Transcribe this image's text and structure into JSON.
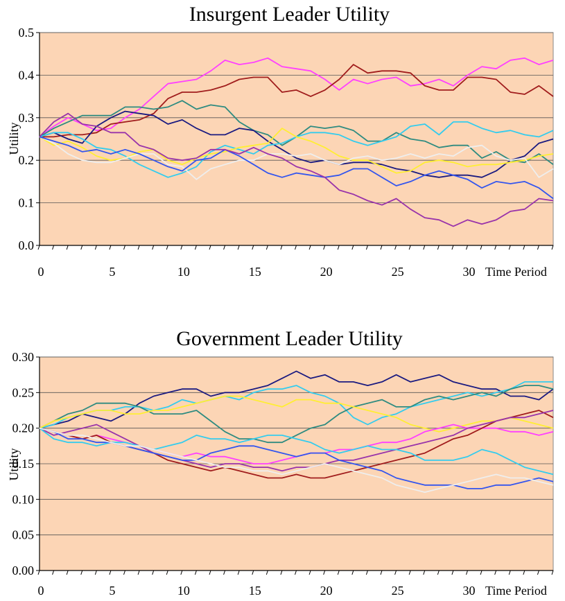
{
  "chart_data": [
    {
      "type": "line",
      "title": "Insurgent Leader Utility",
      "ylabel": "Utility",
      "xlabel": "Time Period",
      "xlim": [
        0,
        36
      ],
      "ylim": [
        0,
        0.5
      ],
      "x_ticks": [
        0,
        5,
        10,
        15,
        20,
        25,
        30
      ],
      "y_ticks": [
        0.0,
        0.1,
        0.2,
        0.3,
        0.4,
        0.5
      ],
      "y_tick_labels": [
        "0.0",
        "0.1",
        "0.2",
        "0.3",
        "0.4",
        "0.5"
      ],
      "grid": "horizontal",
      "plot_background": "#fcd5b5",
      "series": [
        {
          "color": "#ff40ff",
          "values": [
            0.255,
            0.28,
            0.3,
            0.285,
            0.27,
            0.275,
            0.3,
            0.32,
            0.35,
            0.38,
            0.385,
            0.39,
            0.41,
            0.435,
            0.425,
            0.43,
            0.44,
            0.42,
            0.415,
            0.41,
            0.39,
            0.365,
            0.39,
            0.38,
            0.39,
            0.395,
            0.375,
            0.38,
            0.39,
            0.375,
            0.4,
            0.42,
            0.415,
            0.435,
            0.44,
            0.425,
            0.435
          ]
        },
        {
          "color": "#a01c1c",
          "values": [
            0.255,
            0.255,
            0.26,
            0.26,
            0.265,
            0.285,
            0.29,
            0.295,
            0.31,
            0.345,
            0.36,
            0.36,
            0.365,
            0.375,
            0.39,
            0.395,
            0.395,
            0.36,
            0.365,
            0.35,
            0.365,
            0.39,
            0.425,
            0.405,
            0.41,
            0.41,
            0.405,
            0.375,
            0.365,
            0.365,
            0.395,
            0.395,
            0.39,
            0.36,
            0.355,
            0.375,
            0.35
          ]
        },
        {
          "color": "#2e8b80",
          "values": [
            0.255,
            0.275,
            0.29,
            0.305,
            0.305,
            0.305,
            0.325,
            0.325,
            0.32,
            0.325,
            0.34,
            0.32,
            0.33,
            0.325,
            0.29,
            0.27,
            0.26,
            0.235,
            0.255,
            0.28,
            0.275,
            0.28,
            0.27,
            0.245,
            0.245,
            0.265,
            0.25,
            0.245,
            0.23,
            0.235,
            0.235,
            0.205,
            0.22,
            0.2,
            0.195,
            0.215,
            0.19
          ]
        },
        {
          "color": "#1a1a80",
          "values": [
            0.255,
            0.265,
            0.25,
            0.24,
            0.28,
            0.3,
            0.315,
            0.31,
            0.305,
            0.285,
            0.295,
            0.275,
            0.26,
            0.26,
            0.275,
            0.27,
            0.245,
            0.225,
            0.205,
            0.195,
            0.2,
            0.19,
            0.195,
            0.195,
            0.19,
            0.18,
            0.175,
            0.165,
            0.16,
            0.165,
            0.165,
            0.16,
            0.175,
            0.2,
            0.21,
            0.24,
            0.25
          ]
        },
        {
          "color": "#33ccee",
          "values": [
            0.255,
            0.265,
            0.265,
            0.25,
            0.23,
            0.225,
            0.21,
            0.19,
            0.175,
            0.16,
            0.17,
            0.185,
            0.22,
            0.235,
            0.225,
            0.215,
            0.235,
            0.24,
            0.255,
            0.265,
            0.265,
            0.26,
            0.245,
            0.235,
            0.245,
            0.255,
            0.28,
            0.285,
            0.26,
            0.29,
            0.29,
            0.275,
            0.265,
            0.27,
            0.26,
            0.255,
            0.27
          ]
        },
        {
          "color": "#ffee33",
          "values": [
            0.255,
            0.235,
            0.245,
            0.23,
            0.21,
            0.2,
            0.205,
            0.22,
            0.225,
            0.2,
            0.19,
            0.205,
            0.215,
            0.22,
            0.23,
            0.235,
            0.24,
            0.275,
            0.255,
            0.245,
            0.23,
            0.21,
            0.2,
            0.2,
            0.185,
            0.17,
            0.175,
            0.195,
            0.2,
            0.195,
            0.185,
            0.19,
            0.19,
            0.195,
            0.2,
            0.21,
            0.215
          ]
        },
        {
          "color": "#eeeeee",
          "values": [
            0.255,
            0.24,
            0.215,
            0.2,
            0.195,
            0.195,
            0.205,
            0.215,
            0.215,
            0.19,
            0.185,
            0.155,
            0.18,
            0.19,
            0.2,
            0.2,
            0.215,
            0.215,
            0.21,
            0.215,
            0.2,
            0.19,
            0.205,
            0.21,
            0.2,
            0.205,
            0.215,
            0.205,
            0.215,
            0.21,
            0.23,
            0.235,
            0.21,
            0.2,
            0.205,
            0.16,
            0.18
          ]
        },
        {
          "color": "#3355ee",
          "values": [
            0.255,
            0.245,
            0.235,
            0.22,
            0.225,
            0.215,
            0.225,
            0.215,
            0.2,
            0.185,
            0.175,
            0.2,
            0.205,
            0.225,
            0.21,
            0.19,
            0.17,
            0.16,
            0.17,
            0.165,
            0.16,
            0.165,
            0.18,
            0.18,
            0.16,
            0.14,
            0.15,
            0.165,
            0.175,
            0.165,
            0.155,
            0.135,
            0.15,
            0.145,
            0.15,
            0.135,
            0.11
          ]
        },
        {
          "color": "#9933aa",
          "values": [
            0.255,
            0.29,
            0.31,
            0.285,
            0.28,
            0.265,
            0.265,
            0.235,
            0.225,
            0.205,
            0.2,
            0.205,
            0.225,
            0.225,
            0.215,
            0.23,
            0.215,
            0.205,
            0.185,
            0.175,
            0.16,
            0.13,
            0.12,
            0.105,
            0.095,
            0.11,
            0.085,
            0.065,
            0.06,
            0.045,
            0.06,
            0.05,
            0.06,
            0.08,
            0.085,
            0.11,
            0.105
          ]
        }
      ]
    },
    {
      "type": "line",
      "title": "Government Leader Utility",
      "ylabel": "Utility",
      "xlabel": "Time Period",
      "xlim": [
        0,
        36
      ],
      "ylim": [
        0,
        0.3
      ],
      "x_ticks": [
        0,
        5,
        10,
        15,
        20,
        25,
        30
      ],
      "y_ticks": [
        0.0,
        0.05,
        0.1,
        0.15,
        0.2,
        0.25,
        0.3
      ],
      "y_tick_labels": [
        "0.00",
        "0.05",
        "0.10",
        "0.15",
        "0.20",
        "0.25",
        "0.30"
      ],
      "grid": "horizontal",
      "plot_background": "#fcd5b5",
      "series": [
        {
          "color": "#1a1a80",
          "values": [
            0.2,
            0.205,
            0.21,
            0.22,
            0.215,
            0.21,
            0.22,
            0.235,
            0.245,
            0.25,
            0.255,
            0.255,
            0.245,
            0.25,
            0.25,
            0.255,
            0.26,
            0.27,
            0.28,
            0.27,
            0.275,
            0.265,
            0.265,
            0.26,
            0.265,
            0.275,
            0.265,
            0.27,
            0.275,
            0.265,
            0.26,
            0.255,
            0.255,
            0.245,
            0.245,
            0.24,
            0.255
          ]
        },
        {
          "color": "#33ccee",
          "values": [
            0.2,
            0.205,
            0.215,
            0.22,
            0.225,
            0.225,
            0.23,
            0.23,
            0.225,
            0.23,
            0.24,
            0.235,
            0.24,
            0.245,
            0.24,
            0.25,
            0.255,
            0.255,
            0.26,
            0.25,
            0.245,
            0.235,
            0.215,
            0.205,
            0.215,
            0.22,
            0.23,
            0.235,
            0.24,
            0.245,
            0.25,
            0.245,
            0.25,
            0.255,
            0.265,
            0.265,
            0.265
          ]
        },
        {
          "color": "#2e8b80",
          "values": [
            0.2,
            0.21,
            0.22,
            0.225,
            0.235,
            0.235,
            0.235,
            0.23,
            0.22,
            0.22,
            0.22,
            0.225,
            0.21,
            0.195,
            0.185,
            0.185,
            0.18,
            0.18,
            0.19,
            0.2,
            0.205,
            0.22,
            0.23,
            0.235,
            0.24,
            0.23,
            0.23,
            0.24,
            0.245,
            0.24,
            0.245,
            0.25,
            0.245,
            0.255,
            0.26,
            0.26,
            0.255
          ]
        },
        {
          "color": "#ffee33",
          "values": [
            0.2,
            0.21,
            0.215,
            0.22,
            0.225,
            0.225,
            0.22,
            0.22,
            0.225,
            0.225,
            0.23,
            0.235,
            0.24,
            0.245,
            0.245,
            0.24,
            0.235,
            0.23,
            0.24,
            0.24,
            0.235,
            0.235,
            0.23,
            0.225,
            0.22,
            0.215,
            0.205,
            0.2,
            0.195,
            0.2,
            0.205,
            0.21,
            0.21,
            0.215,
            0.21,
            0.205,
            0.2
          ]
        },
        {
          "color": "#ff40ff",
          "values": [
            0.2,
            0.195,
            0.19,
            0.185,
            0.19,
            0.185,
            0.18,
            0.175,
            0.17,
            0.165,
            0.16,
            0.165,
            0.16,
            0.16,
            0.155,
            0.15,
            0.15,
            0.155,
            0.16,
            0.165,
            0.165,
            0.17,
            0.17,
            0.175,
            0.18,
            0.18,
            0.185,
            0.195,
            0.2,
            0.205,
            0.2,
            0.2,
            0.2,
            0.195,
            0.195,
            0.19,
            0.195
          ]
        },
        {
          "color": "#a01c1c",
          "values": [
            0.2,
            0.195,
            0.19,
            0.185,
            0.19,
            0.18,
            0.175,
            0.17,
            0.165,
            0.155,
            0.15,
            0.145,
            0.14,
            0.145,
            0.14,
            0.135,
            0.13,
            0.13,
            0.135,
            0.13,
            0.13,
            0.135,
            0.14,
            0.145,
            0.15,
            0.155,
            0.16,
            0.165,
            0.175,
            0.185,
            0.19,
            0.2,
            0.21,
            0.215,
            0.22,
            0.225,
            0.215
          ]
        },
        {
          "color": "#9933aa",
          "values": [
            0.2,
            0.19,
            0.195,
            0.2,
            0.205,
            0.195,
            0.185,
            0.175,
            0.165,
            0.16,
            0.155,
            0.15,
            0.145,
            0.15,
            0.15,
            0.145,
            0.145,
            0.14,
            0.145,
            0.145,
            0.15,
            0.155,
            0.155,
            0.16,
            0.165,
            0.17,
            0.175,
            0.18,
            0.185,
            0.19,
            0.2,
            0.205,
            0.21,
            0.215,
            0.215,
            0.22,
            0.225
          ]
        },
        {
          "color": "#33ccee",
          "values": [
            0.2,
            0.185,
            0.18,
            0.18,
            0.175,
            0.18,
            0.18,
            0.175,
            0.17,
            0.175,
            0.18,
            0.19,
            0.185,
            0.185,
            0.18,
            0.185,
            0.19,
            0.19,
            0.185,
            0.18,
            0.17,
            0.165,
            0.17,
            0.175,
            0.17,
            0.17,
            0.165,
            0.155,
            0.155,
            0.155,
            0.16,
            0.17,
            0.165,
            0.155,
            0.145,
            0.14,
            0.135
          ]
        },
        {
          "color": "#3355ee",
          "values": [
            0.2,
            0.195,
            0.185,
            0.185,
            0.18,
            0.18,
            0.175,
            0.17,
            0.165,
            0.16,
            0.155,
            0.155,
            0.165,
            0.17,
            0.175,
            0.175,
            0.17,
            0.165,
            0.16,
            0.165,
            0.165,
            0.155,
            0.15,
            0.145,
            0.14,
            0.13,
            0.125,
            0.12,
            0.12,
            0.12,
            0.115,
            0.115,
            0.12,
            0.12,
            0.125,
            0.13,
            0.125
          ]
        },
        {
          "color": "#eeeeee",
          "values": [
            0.2,
            0.195,
            0.19,
            0.19,
            0.185,
            0.18,
            0.175,
            0.175,
            0.17,
            0.165,
            0.16,
            0.155,
            0.15,
            0.145,
            0.145,
            0.14,
            0.14,
            0.135,
            0.14,
            0.145,
            0.15,
            0.145,
            0.14,
            0.135,
            0.13,
            0.12,
            0.115,
            0.11,
            0.115,
            0.12,
            0.125,
            0.13,
            0.135,
            0.13,
            0.13,
            0.125,
            0.12
          ]
        }
      ]
    }
  ]
}
